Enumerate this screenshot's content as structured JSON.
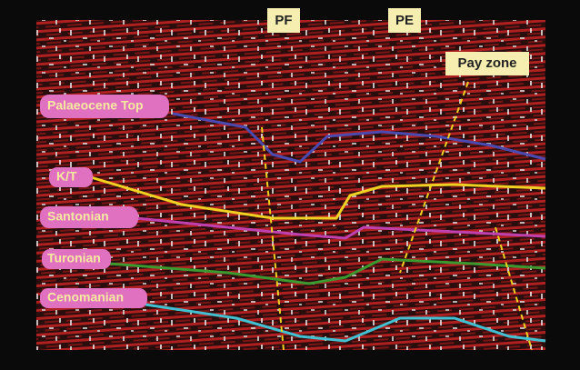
{
  "wells": [
    "PF",
    "PE"
  ],
  "pay_zone": "Pay zone",
  "horizons": [
    "Palaeocene Top",
    "K/T",
    "Santonian",
    "Turonian",
    "Cenomanian"
  ]
}
